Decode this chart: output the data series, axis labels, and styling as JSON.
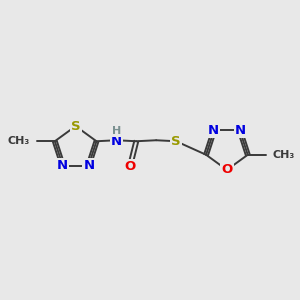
{
  "bg_color": "#e8e8e8",
  "bond_color": "#3a3a3a",
  "bond_width": 1.4,
  "atom_colors": {
    "N": "#0000e0",
    "O": "#ee0000",
    "S": "#999900",
    "C": "#3a3a3a",
    "H": "#7a9090"
  },
  "font_size_atom": 9.5,
  "font_size_methyl": 8.0
}
